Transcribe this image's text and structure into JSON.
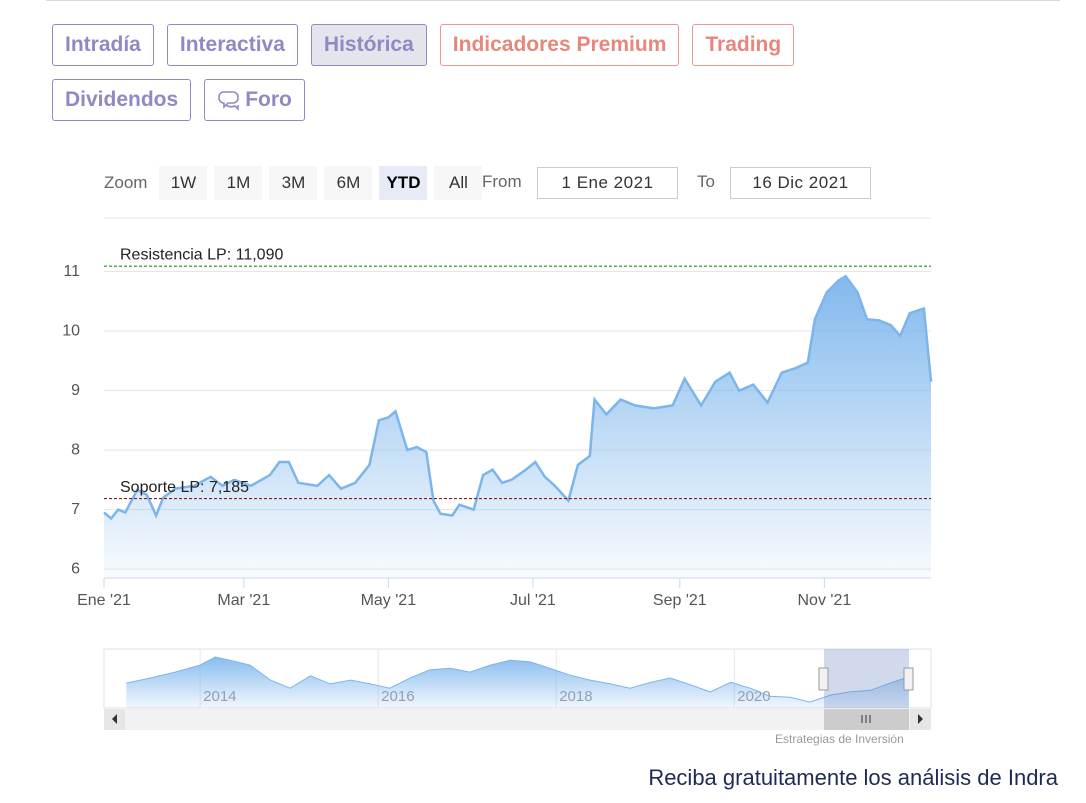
{
  "tabs": [
    {
      "label": "Intradía",
      "kind": "primary",
      "active": false
    },
    {
      "label": "Interactiva",
      "kind": "primary",
      "active": false
    },
    {
      "label": "Histórica",
      "kind": "primary",
      "active": true
    },
    {
      "label": "Indicadores Premium",
      "kind": "premium",
      "active": false
    },
    {
      "label": "Trading",
      "kind": "premium",
      "active": false
    },
    {
      "label": "Dividendos",
      "kind": "primary",
      "active": false
    },
    {
      "label": "Foro",
      "kind": "primary",
      "active": false
    }
  ],
  "zoom": {
    "label": "Zoom",
    "buttons": [
      "1W",
      "1M",
      "3M",
      "6M",
      "YTD",
      "All"
    ],
    "active": 4
  },
  "range": {
    "from_label": "From",
    "from": "1 Ene 2021",
    "to_label": "To",
    "to": "16 Dic 2021"
  },
  "chart_data": {
    "type": "area",
    "x": [
      0,
      3,
      6,
      9,
      14,
      18,
      22,
      25,
      30,
      38,
      45,
      50,
      55,
      62,
      70,
      74,
      78,
      82,
      90,
      95,
      100,
      106,
      112,
      116,
      120,
      123,
      128,
      132,
      136,
      139,
      142,
      147,
      150,
      156,
      160,
      164,
      168,
      172,
      178,
      182,
      186,
      190,
      196,
      200,
      205,
      207,
      212,
      218,
      224,
      232,
      240,
      245,
      252,
      258,
      264,
      268,
      274,
      280,
      286,
      292,
      297,
      300,
      305,
      310,
      313,
      318,
      322,
      327,
      332,
      336,
      340,
      346,
      349
    ],
    "values": [
      6.95,
      6.85,
      7.0,
      6.95,
      7.33,
      7.25,
      6.9,
      7.2,
      7.35,
      7.4,
      7.55,
      7.4,
      7.5,
      7.4,
      7.58,
      7.8,
      7.8,
      7.45,
      7.4,
      7.58,
      7.35,
      7.45,
      7.75,
      8.5,
      8.55,
      8.65,
      8.0,
      8.05,
      7.97,
      7.15,
      6.93,
      6.9,
      7.08,
      7.0,
      7.58,
      7.67,
      7.45,
      7.5,
      7.67,
      7.8,
      7.55,
      7.41,
      7.15,
      7.75,
      7.9,
      8.85,
      8.6,
      8.85,
      8.75,
      8.7,
      8.75,
      9.2,
      8.75,
      9.15,
      9.3,
      9.0,
      9.1,
      8.8,
      9.3,
      9.38,
      9.47,
      10.2,
      10.65,
      10.85,
      10.92,
      10.65,
      10.2,
      10.18,
      10.1,
      9.92,
      10.3,
      10.38,
      9.15
    ],
    "color": "#7cb5ec",
    "xlim": [
      0,
      349
    ],
    "xticks": [
      {
        "value": 0,
        "label": "Ene '21"
      },
      {
        "value": 59,
        "label": "Mar '21"
      },
      {
        "value": 120,
        "label": "May '21"
      },
      {
        "value": 181,
        "label": "Jul '21"
      },
      {
        "value": 243,
        "label": "Sep '21"
      },
      {
        "value": 304,
        "label": "Nov '21"
      }
    ],
    "ylim": [
      5.85,
      11.9
    ],
    "yticks": [
      6,
      7,
      8,
      9,
      10,
      11
    ],
    "grid": true,
    "plot_lines": [
      {
        "value": 11.09,
        "label": "Resistencia LP: 11,090",
        "color": "#1f8a1f"
      },
      {
        "value": 7.185,
        "label": "Soporte LP: 7,185",
        "color": "#8b1a1a"
      }
    ]
  },
  "navigator": {
    "x": [
      2013.17,
      2013.44,
      2013.72,
      2014.0,
      2014.17,
      2014.34,
      2014.56,
      2014.79,
      2015.01,
      2015.24,
      2015.46,
      2015.69,
      2015.91,
      2016.13,
      2016.36,
      2016.58,
      2016.81,
      2017.03,
      2017.26,
      2017.48,
      2017.71,
      2017.93,
      2018.16,
      2018.38,
      2018.61,
      2018.83,
      2019.06,
      2019.28,
      2019.51,
      2019.73,
      2019.96,
      2020.18,
      2020.4,
      2020.63,
      2020.85,
      2021.08,
      2021.3,
      2021.53,
      2021.75,
      2021.92,
      2021.96
    ],
    "values": [
      8.65,
      9.6,
      10.7,
      12.0,
      13.5,
      12.9,
      12.0,
      9.2,
      7.7,
      10.0,
      8.5,
      9.2,
      8.5,
      7.7,
      9.6,
      11.1,
      11.4,
      10.7,
      12.0,
      12.9,
      12.6,
      11.4,
      10.1,
      9.2,
      8.5,
      7.7,
      8.8,
      9.6,
      8.3,
      7.0,
      8.8,
      7.7,
      6.2,
      6.0,
      5.1,
      6.4,
      7.0,
      7.3,
      8.65,
      9.6,
      8.1
    ],
    "xlim": [
      2012.92,
      2022.21
    ],
    "xticks": [
      2014,
      2016,
      2018,
      2020
    ],
    "ylim": [
      4,
      15
    ]
  },
  "credit": "Estrategias de Inversión",
  "footer": "Reciba gratuitamente los análisis de Indra"
}
